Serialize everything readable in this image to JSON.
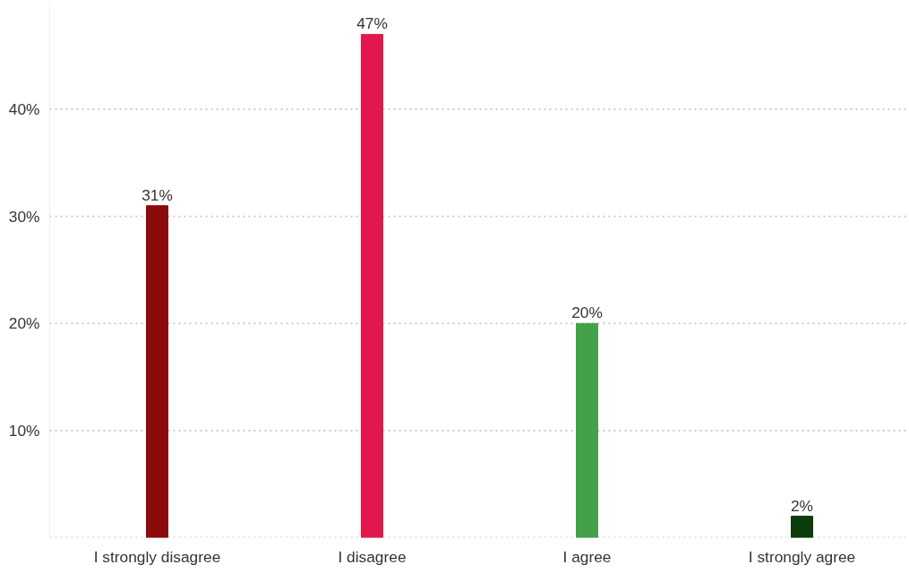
{
  "chart_data": {
    "type": "bar",
    "categories": [
      "I strongly disagree",
      "I disagree",
      "I agree",
      "I strongly agree"
    ],
    "values": [
      31,
      47,
      20,
      2
    ],
    "colors": [
      "#8b0b0b",
      "#e2174b",
      "#43a148",
      "#0b3d0b"
    ],
    "value_labels": [
      "31%",
      "47%",
      "20%",
      "2%"
    ],
    "ylim": [
      0,
      50
    ],
    "yticks": [
      {
        "value": 0,
        "label": null
      },
      {
        "value": 10,
        "label": "10%"
      },
      {
        "value": 20,
        "label": "20%"
      },
      {
        "value": 30,
        "label": "30%"
      },
      {
        "value": 40,
        "label": "40%"
      }
    ],
    "grid": "y"
  }
}
